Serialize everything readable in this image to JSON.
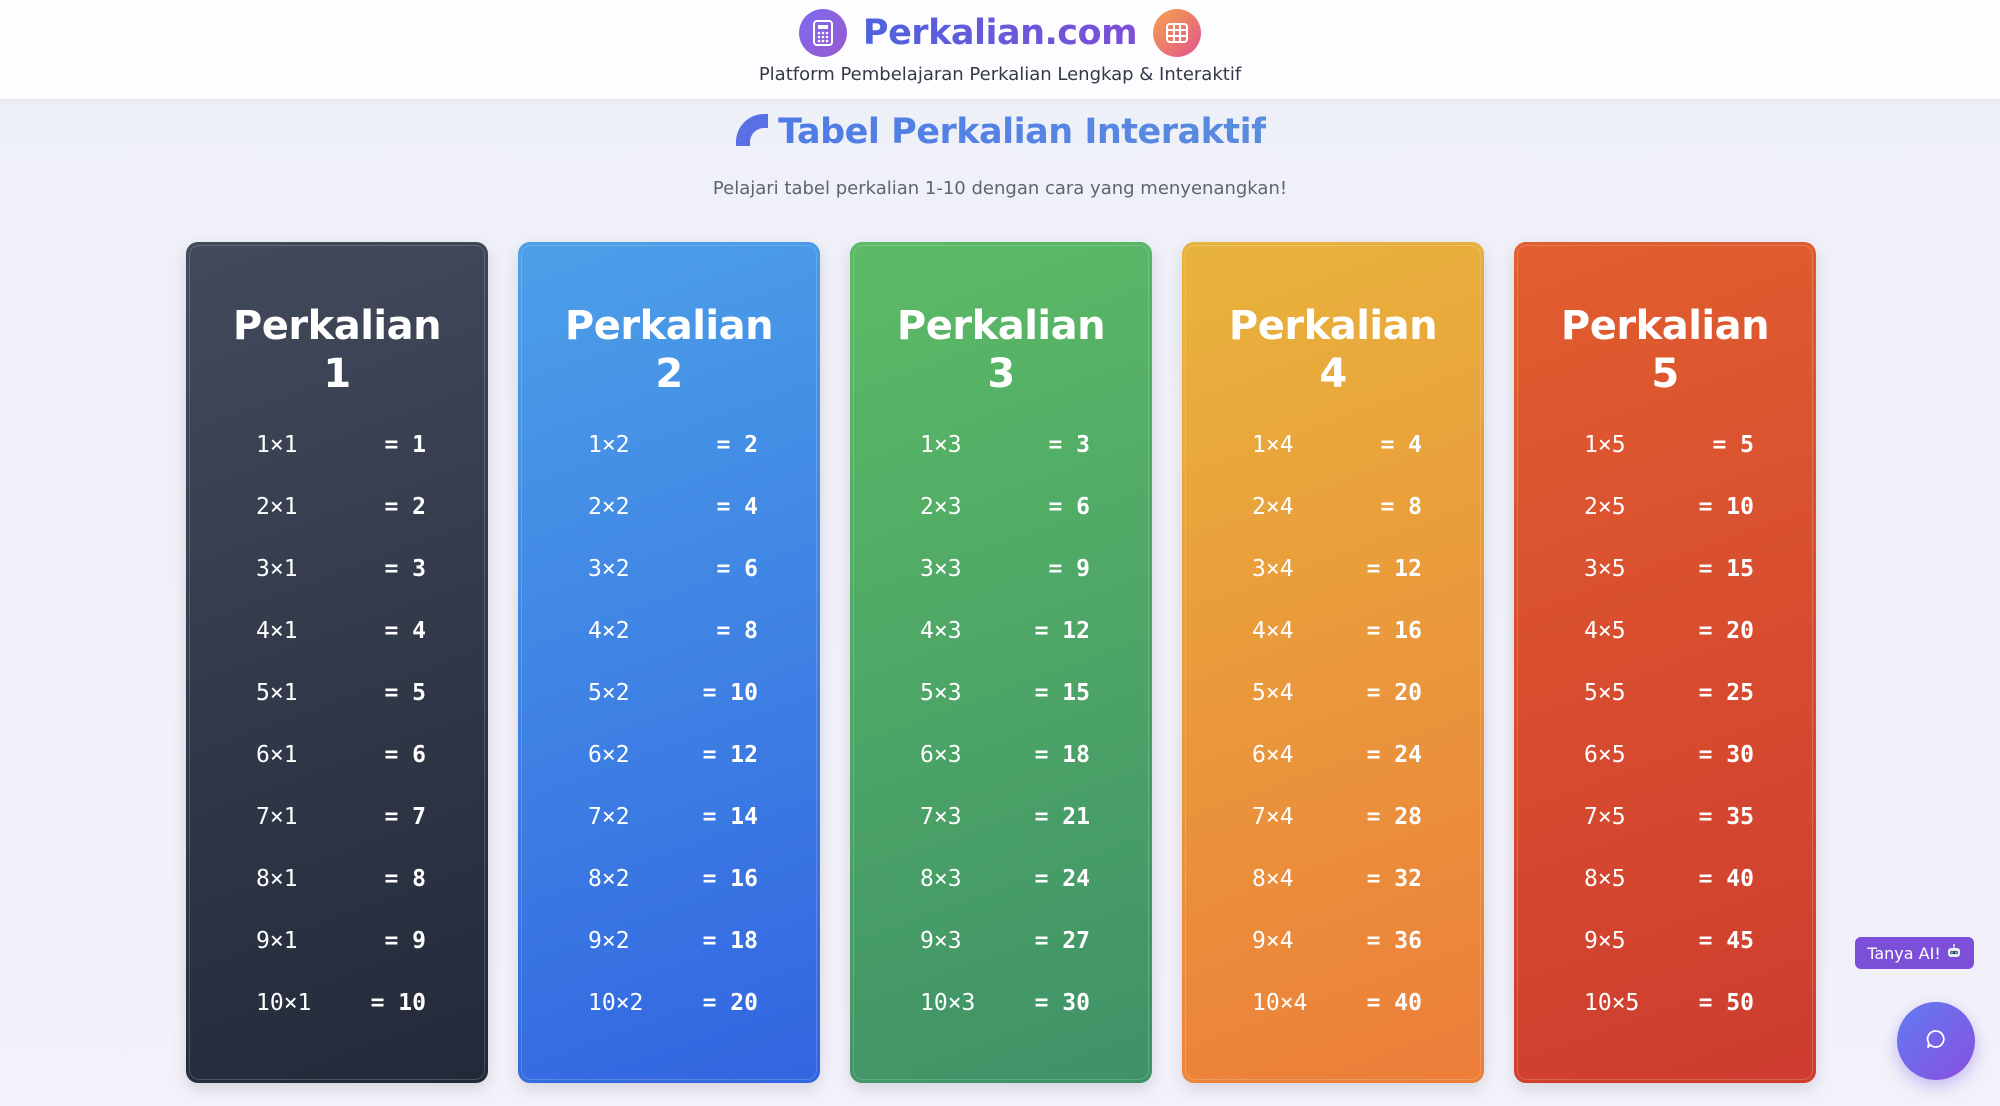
{
  "header": {
    "brand": "Perkalian.com",
    "tagline": "Platform Pembelajaran Perkalian Lengkap & Interaktif",
    "left_icon": "calculator-icon",
    "right_icon": "grid-icon"
  },
  "section": {
    "title": "Tabel Perkalian Interaktif",
    "title_icon": "quarter-circle-icon",
    "subtitle": "Pelajari tabel perkalian 1-10 dengan cara yang menyenangkan!"
  },
  "cards": [
    {
      "title_line1": "Perkalian",
      "title_line2": "1",
      "color": "#2f3646",
      "rows": [
        {
          "expr": "1×1",
          "res": "= 1"
        },
        {
          "expr": "2×1",
          "res": "= 2"
        },
        {
          "expr": "3×1",
          "res": "= 3"
        },
        {
          "expr": "4×1",
          "res": "= 4"
        },
        {
          "expr": "5×1",
          "res": "= 5"
        },
        {
          "expr": "6×1",
          "res": "= 6"
        },
        {
          "expr": "7×1",
          "res": "= 7"
        },
        {
          "expr": "8×1",
          "res": "= 8"
        },
        {
          "expr": "9×1",
          "res": "= 9"
        },
        {
          "expr": "10×1",
          "res": "= 10"
        }
      ]
    },
    {
      "title_line1": "Perkalian",
      "title_line2": "2",
      "color": "#3b82e4",
      "rows": [
        {
          "expr": "1×2",
          "res": "= 2"
        },
        {
          "expr": "2×2",
          "res": "= 4"
        },
        {
          "expr": "3×2",
          "res": "= 6"
        },
        {
          "expr": "4×2",
          "res": "= 8"
        },
        {
          "expr": "5×2",
          "res": "= 10"
        },
        {
          "expr": "6×2",
          "res": "= 12"
        },
        {
          "expr": "7×2",
          "res": "= 14"
        },
        {
          "expr": "8×2",
          "res": "= 16"
        },
        {
          "expr": "9×2",
          "res": "= 18"
        },
        {
          "expr": "10×2",
          "res": "= 20"
        }
      ]
    },
    {
      "title_line1": "Perkalian",
      "title_line2": "3",
      "color": "#4caa67",
      "rows": [
        {
          "expr": "1×3",
          "res": "= 3"
        },
        {
          "expr": "2×3",
          "res": "= 6"
        },
        {
          "expr": "3×3",
          "res": "= 9"
        },
        {
          "expr": "4×3",
          "res": "= 12"
        },
        {
          "expr": "5×3",
          "res": "= 15"
        },
        {
          "expr": "6×3",
          "res": "= 18"
        },
        {
          "expr": "7×3",
          "res": "= 21"
        },
        {
          "expr": "8×3",
          "res": "= 24"
        },
        {
          "expr": "9×3",
          "res": "= 27"
        },
        {
          "expr": "10×3",
          "res": "= 30"
        }
      ]
    },
    {
      "title_line1": "Perkalian",
      "title_line2": "4",
      "color": "#ea9a3a",
      "rows": [
        {
          "expr": "1×4",
          "res": "= 4"
        },
        {
          "expr": "2×4",
          "res": "= 8"
        },
        {
          "expr": "3×4",
          "res": "= 12"
        },
        {
          "expr": "4×4",
          "res": "= 16"
        },
        {
          "expr": "5×4",
          "res": "= 20"
        },
        {
          "expr": "6×4",
          "res": "= 24"
        },
        {
          "expr": "7×4",
          "res": "= 28"
        },
        {
          "expr": "8×4",
          "res": "= 32"
        },
        {
          "expr": "9×4",
          "res": "= 36"
        },
        {
          "expr": "10×4",
          "res": "= 40"
        }
      ]
    },
    {
      "title_line1": "Perkalian",
      "title_line2": "5",
      "color": "#d84c2f",
      "rows": [
        {
          "expr": "1×5",
          "res": "= 5"
        },
        {
          "expr": "2×5",
          "res": "= 10"
        },
        {
          "expr": "3×5",
          "res": "= 15"
        },
        {
          "expr": "4×5",
          "res": "= 20"
        },
        {
          "expr": "5×5",
          "res": "= 25"
        },
        {
          "expr": "6×5",
          "res": "= 30"
        },
        {
          "expr": "7×5",
          "res": "= 35"
        },
        {
          "expr": "8×5",
          "res": "= 40"
        },
        {
          "expr": "9×5",
          "res": "= 45"
        },
        {
          "expr": "10×5",
          "res": "= 50"
        }
      ]
    }
  ],
  "ai_badge": {
    "label": "Tanya AI!",
    "icon": "robot-icon"
  },
  "chat_button": {
    "icon": "chat-bubble-icon"
  }
}
